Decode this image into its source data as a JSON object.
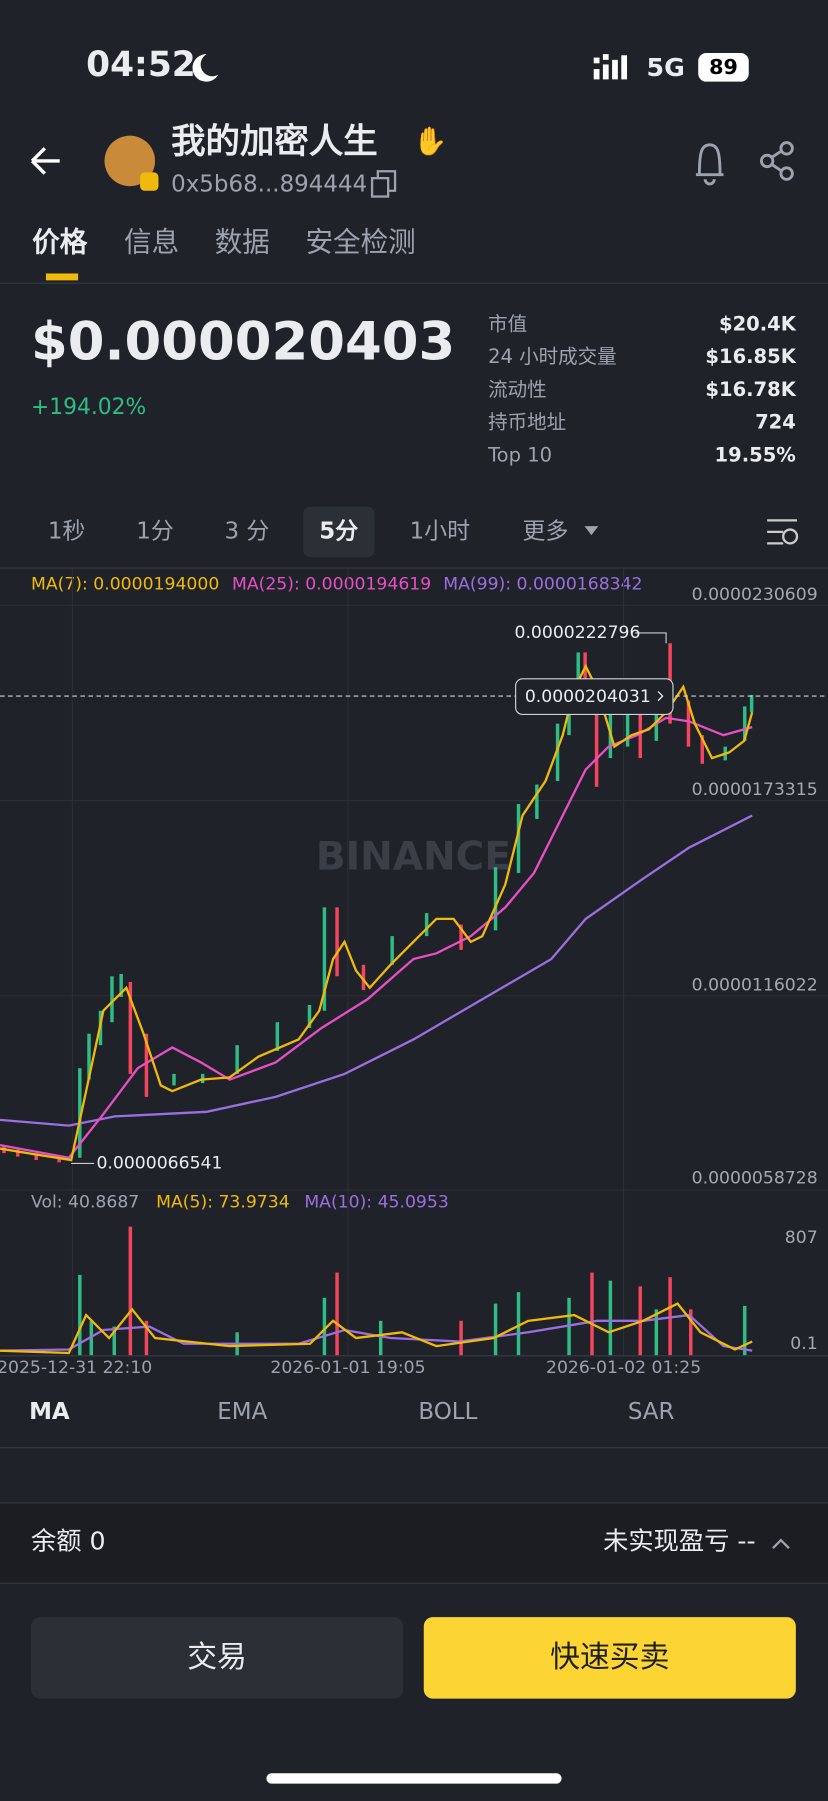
{
  "status": {
    "time": "04:52",
    "network": "5G",
    "battery": "89"
  },
  "header": {
    "name": "我的加密人生",
    "address": "0x5b68...894444"
  },
  "tabs": [
    "价格",
    "信息",
    "数据",
    "安全检测"
  ],
  "price": {
    "value": "$0.000020403",
    "change": "+194.02%"
  },
  "stats": [
    {
      "label": "市值",
      "value": "$20.4K"
    },
    {
      "label": "24 小时成交量",
      "value": "$16.85K"
    },
    {
      "label": "流动性",
      "value": "$16.78K"
    },
    {
      "label": "持币地址",
      "value": "724"
    },
    {
      "label": "Top 10",
      "value": "19.55%"
    }
  ],
  "intervals": [
    "1秒",
    "1分",
    "3 分",
    "5分",
    "1小时",
    "更多"
  ],
  "chart": {
    "ma_labels": [
      "MA(7): 0.0000194000",
      "MA(25): 0.0000194619",
      "MA(99): 0.0000168342"
    ],
    "price_axis": [
      "0.0000230609",
      "0.0000173315",
      "0.0000116022",
      "0.0000058728"
    ],
    "high": "0.0000222796",
    "current": "0.0000204031",
    "low": "0.0000066541",
    "watermark": "BINANCE",
    "vol_labels": [
      "Vol: 40.8687",
      "MA(5): 73.9734",
      "MA(10): 45.0953"
    ],
    "vol_axis": [
      "807",
      "0.1"
    ],
    "dates": [
      "2025-12-31 22:10",
      "2026-01-01 19:05",
      "2026-01-02 01:25"
    ]
  },
  "indicators": [
    "MA",
    "EMA",
    "BOLL",
    "SAR"
  ],
  "footer": {
    "balance": "余额 0",
    "pnl": "未实现盈亏 --",
    "buttons": [
      "交易",
      "快速买卖"
    ]
  }
}
